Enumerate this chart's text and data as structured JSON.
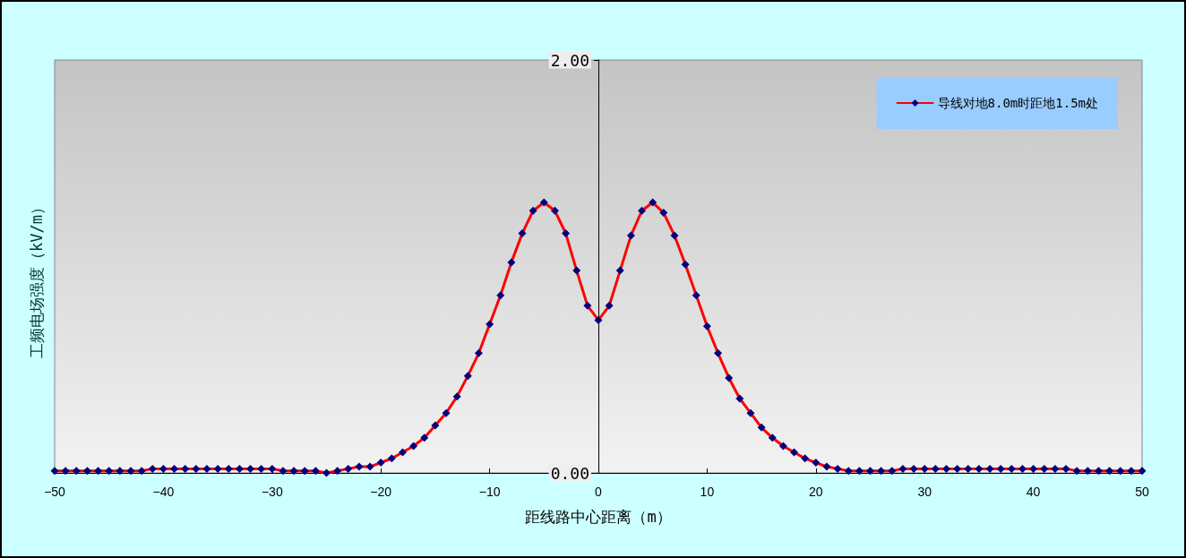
{
  "chart_data": {
    "type": "line",
    "xlabel": "距线路中心距离（m）",
    "ylabel": "工频电场强度（kV/m）",
    "x": [
      -50,
      -49,
      -48,
      -47,
      -46,
      -45,
      -44,
      -43,
      -42,
      -41,
      -40,
      -39,
      -38,
      -37,
      -36,
      -35,
      -34,
      -33,
      -32,
      -31,
      -30,
      -29,
      -28,
      -27,
      -26,
      -25,
      -24,
      -23,
      -22,
      -21,
      -20,
      -19,
      -18,
      -17,
      -16,
      -15,
      -14,
      -13,
      -12,
      -11,
      -10,
      -9,
      -8,
      -7,
      -6,
      -5,
      -4,
      -3,
      -2,
      -1,
      0,
      1,
      2,
      3,
      4,
      5,
      6,
      7,
      8,
      9,
      10,
      11,
      12,
      13,
      14,
      15,
      16,
      17,
      18,
      19,
      20,
      21,
      22,
      23,
      24,
      25,
      26,
      27,
      28,
      29,
      30,
      31,
      32,
      33,
      34,
      35,
      36,
      37,
      38,
      39,
      40,
      41,
      42,
      43,
      44,
      45,
      46,
      47,
      48,
      49,
      50
    ],
    "series": [
      {
        "name": "导线对地8.0m时距地1.5m处",
        "color": "#ff0000",
        "values": [
          0.01,
          0.01,
          0.01,
          0.01,
          0.01,
          0.01,
          0.01,
          0.01,
          0.01,
          0.02,
          0.02,
          0.02,
          0.02,
          0.02,
          0.02,
          0.02,
          0.02,
          0.02,
          0.02,
          0.02,
          0.02,
          0.01,
          0.01,
          0.01,
          0.01,
          0.0,
          0.01,
          0.02,
          0.03,
          0.03,
          0.05,
          0.07,
          0.1,
          0.13,
          0.17,
          0.23,
          0.29,
          0.37,
          0.47,
          0.58,
          0.72,
          0.86,
          1.02,
          1.16,
          1.27,
          1.31,
          1.27,
          1.16,
          0.98,
          0.81,
          0.74,
          0.81,
          0.98,
          1.15,
          1.27,
          1.31,
          1.26,
          1.15,
          1.01,
          0.86,
          0.71,
          0.58,
          0.46,
          0.36,
          0.29,
          0.22,
          0.17,
          0.13,
          0.1,
          0.07,
          0.05,
          0.03,
          0.02,
          0.01,
          0.01,
          0.01,
          0.01,
          0.01,
          0.02,
          0.02,
          0.02,
          0.02,
          0.02,
          0.02,
          0.02,
          0.02,
          0.02,
          0.02,
          0.02,
          0.02,
          0.02,
          0.02,
          0.02,
          0.02,
          0.01,
          0.01,
          0.01,
          0.01,
          0.01,
          0.01,
          0.01
        ]
      }
    ],
    "xlim": [
      -50,
      50
    ],
    "xticks": [
      -50,
      -40,
      -30,
      -20,
      -10,
      0,
      10,
      20,
      30,
      40,
      50
    ],
    "ylim": [
      0,
      2
    ],
    "yticks": [
      {
        "value": 0,
        "label": "0.00"
      },
      {
        "value": 2,
        "label": "2.00"
      }
    ],
    "grid": false,
    "legend": "top right",
    "marker": "diamond",
    "line_style": "solid"
  }
}
